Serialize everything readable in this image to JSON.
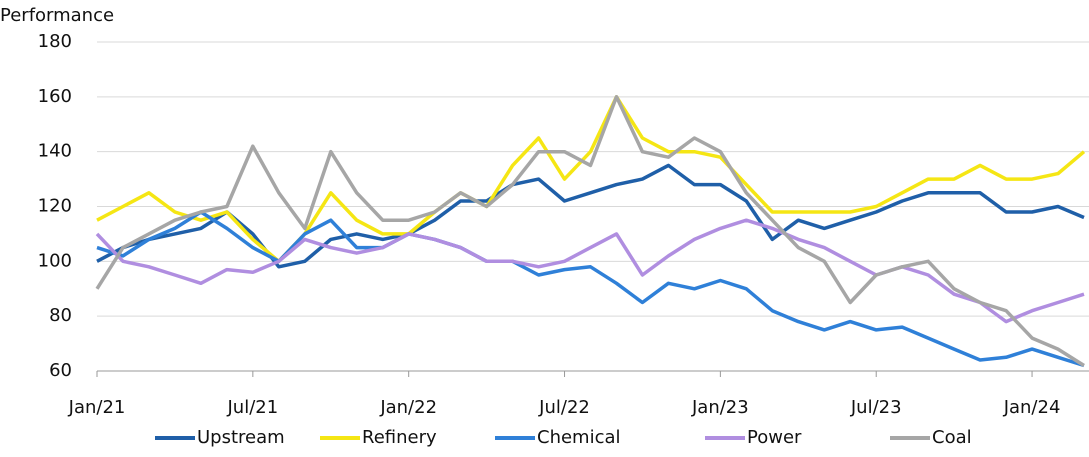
{
  "chart_data": {
    "type": "line",
    "y_label": "Performance",
    "x": [
      "2021-01",
      "2021-02",
      "2021-03",
      "2021-04",
      "2021-05",
      "2021-06",
      "2021-07",
      "2021-08",
      "2021-09",
      "2021-10",
      "2021-11",
      "2021-12",
      "2022-01",
      "2022-02",
      "2022-03",
      "2022-04",
      "2022-05",
      "2022-06",
      "2022-07",
      "2022-08",
      "2022-09",
      "2022-10",
      "2022-11",
      "2022-12",
      "2023-01",
      "2023-02",
      "2023-03",
      "2023-04",
      "2023-05",
      "2023-06",
      "2023-07",
      "2023-08",
      "2023-09",
      "2023-10",
      "2023-11",
      "2023-12",
      "2024-01",
      "2024-02",
      "2024-03"
    ],
    "xlim": [
      "2021-01",
      "2024-03"
    ],
    "xticks": [
      {
        "value": "2021-01",
        "label": "Jan/21"
      },
      {
        "value": "2021-07",
        "label": "Jul/21"
      },
      {
        "value": "2022-01",
        "label": "Jan/22"
      },
      {
        "value": "2022-07",
        "label": "Jul/22"
      },
      {
        "value": "2023-01",
        "label": "Jan/23"
      },
      {
        "value": "2023-07",
        "label": "Jul/23"
      },
      {
        "value": "2024-01",
        "label": "Jan/24"
      }
    ],
    "ylim": [
      60,
      180
    ],
    "yticks": [
      60,
      80,
      100,
      120,
      140,
      160,
      180
    ],
    "grid": true,
    "legend": "bottom",
    "series": [
      {
        "name": "Upstream",
        "color": "#1f5fa8",
        "values": [
          100,
          105,
          108,
          110,
          112,
          118,
          110,
          98,
          100,
          108,
          110,
          108,
          110,
          115,
          122,
          122,
          128,
          130,
          122,
          125,
          128,
          130,
          135,
          128,
          128,
          122,
          108,
          115,
          112,
          115,
          118,
          122,
          125,
          125,
          125,
          118,
          118,
          120,
          116
        ]
      },
      {
        "name": "Refinery",
        "color": "#f5e614",
        "values": [
          115,
          120,
          125,
          118,
          115,
          118,
          108,
          100,
          110,
          125,
          115,
          110,
          110,
          118,
          125,
          120,
          135,
          145,
          130,
          140,
          160,
          145,
          140,
          140,
          138,
          128,
          118,
          118,
          118,
          118,
          120,
          125,
          130,
          130,
          135,
          130,
          130,
          132,
          140
        ]
      },
      {
        "name": "Chemical",
        "color": "#2f80d8",
        "values": [
          105,
          102,
          108,
          112,
          118,
          112,
          105,
          100,
          110,
          115,
          105,
          105,
          110,
          108,
          105,
          100,
          100,
          95,
          97,
          98,
          92,
          85,
          92,
          90,
          93,
          90,
          82,
          78,
          75,
          78,
          75,
          76,
          72,
          68,
          64,
          65,
          68,
          65,
          62
        ]
      },
      {
        "name": "Power",
        "color": "#b08ee0",
        "values": [
          110,
          100,
          98,
          95,
          92,
          97,
          96,
          100,
          108,
          105,
          103,
          105,
          110,
          108,
          105,
          100,
          100,
          98,
          100,
          105,
          110,
          95,
          102,
          108,
          112,
          115,
          112,
          108,
          105,
          100,
          95,
          98,
          95,
          88,
          85,
          78,
          82,
          85,
          88
        ]
      },
      {
        "name": "Coal",
        "color": "#a6a6a6",
        "values": [
          90,
          105,
          110,
          115,
          118,
          120,
          142,
          125,
          112,
          140,
          125,
          115,
          115,
          118,
          125,
          120,
          128,
          140,
          140,
          135,
          160,
          140,
          138,
          145,
          140,
          125,
          115,
          105,
          100,
          85,
          95,
          98,
          100,
          90,
          85,
          82,
          72,
          68,
          62
        ]
      }
    ]
  }
}
